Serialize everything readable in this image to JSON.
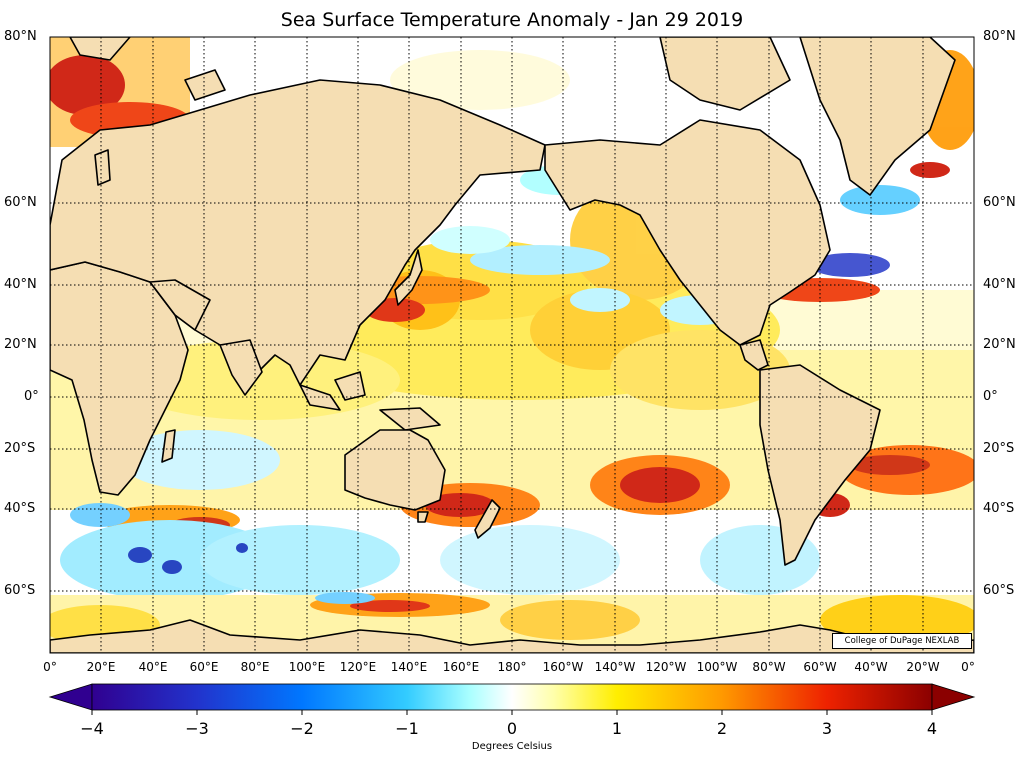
{
  "title": "Sea Surface Temperature Anomaly - Jan 29 2019",
  "credit": "College of DuPage NEXLAB",
  "colorbar_label": "Degrees Celsius",
  "lat_labels": [
    "80°N",
    "60°N",
    "40°N",
    "20°N",
    "0°",
    "20°S",
    "40°S",
    "60°S"
  ],
  "lon_labels": [
    "0°",
    "20°E",
    "40°E",
    "60°E",
    "80°E",
    "100°E",
    "120°E",
    "140°E",
    "160°E",
    "180°",
    "160°W",
    "140°W",
    "120°W",
    "100°W",
    "80°W",
    "60°W",
    "40°W",
    "20°W",
    "0°"
  ],
  "colorbar_ticks": [
    "−4",
    "−3",
    "−2",
    "−1",
    "0",
    "1",
    "2",
    "3",
    "4"
  ],
  "colors": {
    "land": "#f5deb3",
    "ocean_neutral": "#ffffff",
    "warm_light": "#ffee00",
    "warm_mid": "#ff9900",
    "warm_strong": "#cc0000",
    "cool_light": "#99ffff",
    "cool_mid": "#33aaff",
    "cool_strong": "#2222aa"
  }
}
